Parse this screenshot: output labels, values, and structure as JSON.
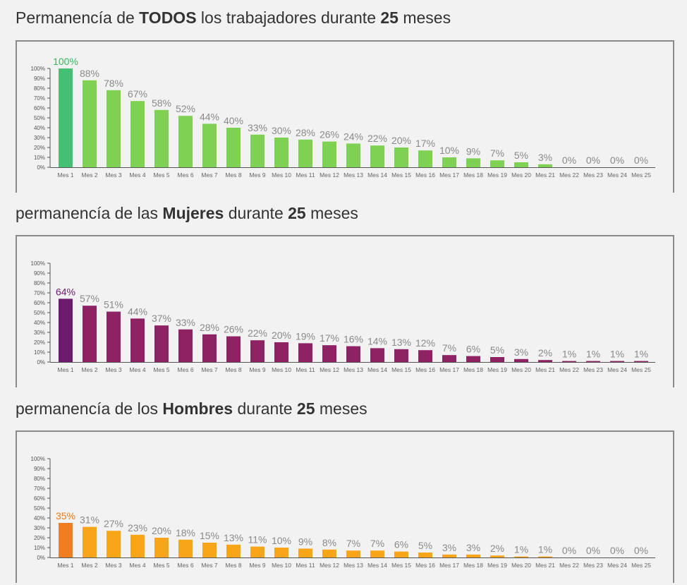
{
  "sections": [
    {
      "title_pre": "Permanencía de ",
      "title_bold1": "TODOS",
      "title_mid": " los trabajadores durante ",
      "title_bold2": "25",
      "title_post": " meses"
    },
    {
      "title_pre": "permanencía de las ",
      "title_bold1": "Mujeres",
      "title_mid": " durante ",
      "title_bold2": "25",
      "title_post": " meses"
    },
    {
      "title_pre": "permanencía de los ",
      "title_bold1": "Hombres",
      "title_mid": " durante ",
      "title_bold2": "25",
      "title_post": " meses"
    }
  ],
  "chart_data": [
    {
      "type": "bar",
      "categories": [
        "Mes 1",
        "Mes 2",
        "Mes 3",
        "Mes 4",
        "Mes 5",
        "Mes 6",
        "Mes 7",
        "Mes 8",
        "Mes 9",
        "Mes 10",
        "Mes 11",
        "Mes 12",
        "Mes 13",
        "Mes 14",
        "Mes 15",
        "Mes 16",
        "Mes 17",
        "Mes 18",
        "Mes 19",
        "Mes 20",
        "Mes 21",
        "Mes 22",
        "Mes 23",
        "Mes 24",
        "Mes 25"
      ],
      "values": [
        100,
        88,
        78,
        67,
        58,
        52,
        44,
        40,
        33,
        30,
        28,
        26,
        24,
        22,
        20,
        17,
        10,
        9,
        7,
        5,
        3,
        0,
        0,
        0,
        0
      ],
      "labels": [
        "100%",
        "88%",
        "78%",
        "67%",
        "58%",
        "52%",
        "44%",
        "40%",
        "33%",
        "30%",
        "28%",
        "26%",
        "24%",
        "22%",
        "20%",
        "17%",
        "10%",
        "9%",
        "7%",
        "5%",
        "3%",
        "0%",
        "0%",
        "0%",
        "0%"
      ],
      "ylim": [
        0,
        100
      ],
      "yticks": [
        "0%",
        "10%",
        "20%",
        "30%",
        "40%",
        "50%",
        "60%",
        "70%",
        "80%",
        "90%",
        "100%"
      ],
      "colors": {
        "first_bar": "#44bf74",
        "bars": "#7ed152",
        "first_label": "#3cb55a",
        "labels": "#8a8a8a"
      }
    },
    {
      "type": "bar",
      "categories": [
        "Mes 1",
        "Mes 2",
        "Mes 3",
        "Mes 4",
        "Mes 5",
        "Mes 6",
        "Mes 7",
        "Mes 8",
        "Mes 9",
        "Mes 10",
        "Mes 11",
        "Mes 12",
        "Mes 13",
        "Mes 14",
        "Mes 15",
        "Mes 16",
        "Mes 17",
        "Mes 18",
        "Mes 19",
        "Mes 20",
        "Mes 21",
        "Mes 22",
        "Mes 23",
        "Mes 24",
        "Mes 25"
      ],
      "values": [
        64,
        57,
        51,
        44,
        37,
        33,
        28,
        26,
        22,
        20,
        19,
        17,
        16,
        14,
        13,
        12,
        7,
        6,
        5,
        3,
        2,
        1,
        1,
        1,
        1
      ],
      "labels": [
        "64%",
        "57%",
        "51%",
        "44%",
        "37%",
        "33%",
        "28%",
        "26%",
        "22%",
        "20%",
        "19%",
        "17%",
        "16%",
        "14%",
        "13%",
        "12%",
        "7%",
        "6%",
        "5%",
        "3%",
        "2%",
        "1%",
        "1%",
        "1%",
        "1%"
      ],
      "ylim": [
        0,
        100
      ],
      "yticks": [
        "0%",
        "10%",
        "20%",
        "30%",
        "40%",
        "50%",
        "60%",
        "70%",
        "80%",
        "90%",
        "100%"
      ],
      "colors": {
        "first_bar": "#6b1a6e",
        "bars": "#8f2262",
        "first_label": "#6b1a6e",
        "labels": "#8a8a8a"
      }
    },
    {
      "type": "bar",
      "categories": [
        "Mes 1",
        "Mes 2",
        "Mes 3",
        "Mes 4",
        "Mes 5",
        "Mes 6",
        "Mes 7",
        "Mes 8",
        "Mes 9",
        "Mes 10",
        "Mes 11",
        "Mes 12",
        "Mes 13",
        "Mes 14",
        "Mes 15",
        "Mes 16",
        "Mes 17",
        "Mes 18",
        "Mes 19",
        "Mes 20",
        "Mes 21",
        "Mes 22",
        "Mes 23",
        "Mes 24",
        "Mes 25"
      ],
      "values": [
        35,
        31,
        27,
        23,
        20,
        18,
        15,
        13,
        11,
        10,
        9,
        8,
        7,
        7,
        6,
        5,
        3,
        3,
        2,
        1,
        1,
        0,
        0,
        0,
        0
      ],
      "labels": [
        "35%",
        "31%",
        "27%",
        "23%",
        "20%",
        "18%",
        "15%",
        "13%",
        "11%",
        "10%",
        "9%",
        "8%",
        "7%",
        "7%",
        "6%",
        "5%",
        "3%",
        "3%",
        "2%",
        "1%",
        "1%",
        "0%",
        "0%",
        "0%",
        "0%"
      ],
      "ylim": [
        0,
        100
      ],
      "yticks": [
        "0%",
        "10%",
        "20%",
        "30%",
        "40%",
        "50%",
        "60%",
        "70%",
        "80%",
        "90%",
        "100%"
      ],
      "colors": {
        "first_bar": "#f07d1f",
        "bars": "#f9a51a",
        "first_label": "#ee7a1c",
        "labels": "#8a8a8a"
      }
    }
  ]
}
